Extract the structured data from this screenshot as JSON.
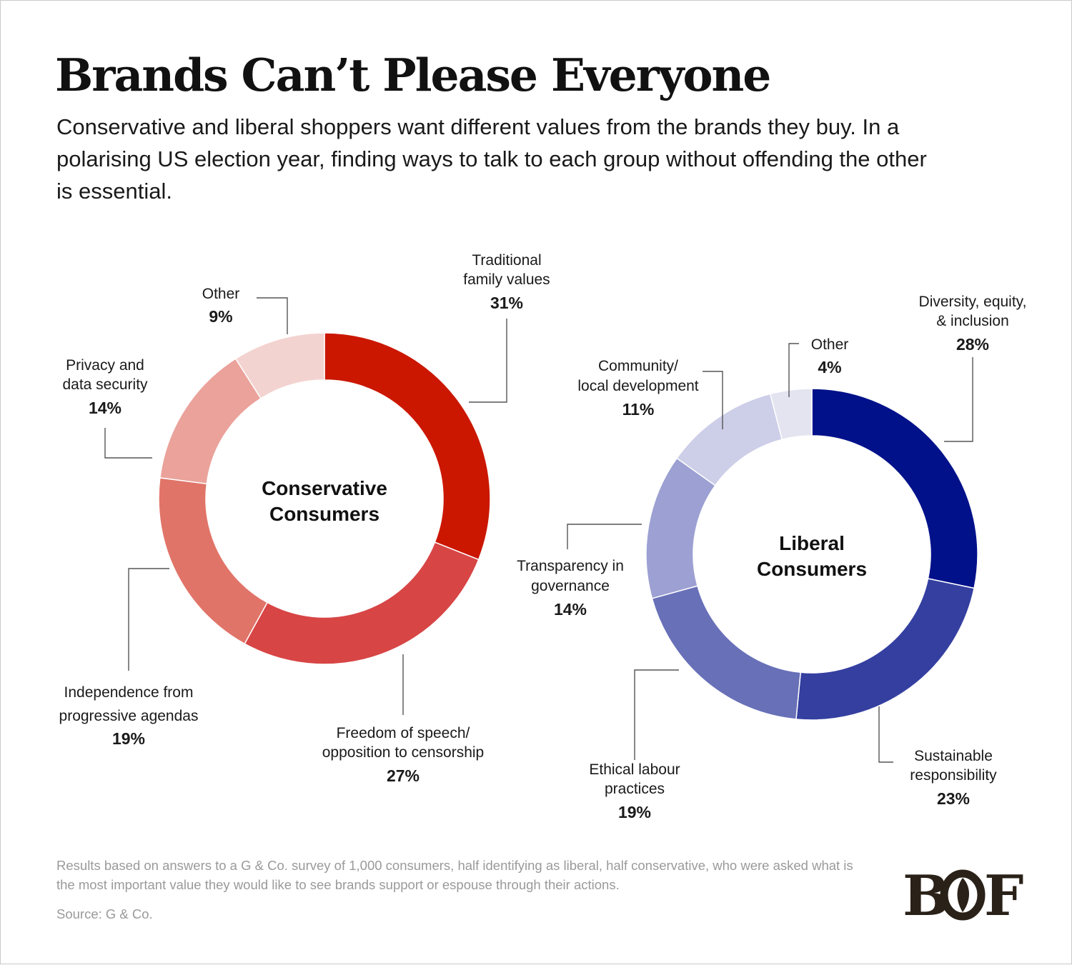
{
  "title": "Brands Can’t Please Everyone",
  "subtitle": "Conservative and liberal shoppers want different values from the brands they buy. In a polarising US election year, finding ways to talk to each group without offending the other is essential.",
  "chart_data": [
    {
      "type": "pie",
      "donut": true,
      "title": "Conservative Consumers",
      "categories": [
        "Traditional family values",
        "Freedom of speech/ opposition to censorship",
        "Independence from progressive agendas",
        "Privacy and data security",
        "Other"
      ],
      "values": [
        31,
        27,
        19,
        14,
        9
      ],
      "unit": "%",
      "colors": [
        "#cb1700",
        "#d84545",
        "#e17468",
        "#eaa29b",
        "#f3d3d0"
      ],
      "slices": [
        {
          "label_lines": [
            "Traditional",
            "family values"
          ],
          "value_text": "31%"
        },
        {
          "label_lines": [
            "Freedom of speech/",
            "opposition to censorship"
          ],
          "value_text": "27%"
        },
        {
          "label_lines": [
            "Independence from",
            "progressive agendas"
          ],
          "value_text": "19%"
        },
        {
          "label_lines": [
            "Privacy and",
            "data security"
          ],
          "value_text": "14%"
        },
        {
          "label_lines": [
            "Other"
          ],
          "value_text": "9%"
        }
      ],
      "center_lines": [
        "Conservative",
        "Consumers"
      ]
    },
    {
      "type": "pie",
      "donut": true,
      "title": "Liberal Consumers",
      "categories": [
        "Diversity, equity, & inclusion",
        "Sustainable responsibility",
        "Ethical labour practices",
        "Transparency in governance",
        "Community/ local development",
        "Other"
      ],
      "values": [
        28,
        23,
        19,
        14,
        11,
        4
      ],
      "unit": "%",
      "colors": [
        "#00118a",
        "#343fa0",
        "#6870b8",
        "#9ca0d2",
        "#cdcee8",
        "#e3e4f0"
      ],
      "slices": [
        {
          "label_lines": [
            "Diversity, equity,",
            "& inclusion"
          ],
          "value_text": "28%"
        },
        {
          "label_lines": [
            "Sustainable",
            "responsibility"
          ],
          "value_text": "23%"
        },
        {
          "label_lines": [
            "Ethical labour",
            "practices"
          ],
          "value_text": "19%"
        },
        {
          "label_lines": [
            "Transparency in",
            "governance"
          ],
          "value_text": "14%"
        },
        {
          "label_lines": [
            "Community/",
            "local development"
          ],
          "value_text": "11%"
        },
        {
          "label_lines": [
            "Other"
          ],
          "value_text": "4%"
        }
      ],
      "center_lines": [
        "Liberal",
        "Consumers"
      ]
    }
  ],
  "footnote": "Results based on answers to a G & Co. survey of 1,000 consumers, half identifying as liberal, half conservative, who were asked what is the most important value they would like to see brands support or espouse through their actions.",
  "source": "Source: G & Co.",
  "logo_text": "BOF",
  "colors": {
    "text": "#111111",
    "muted": "#9a9a9a",
    "leader": "#555555"
  }
}
